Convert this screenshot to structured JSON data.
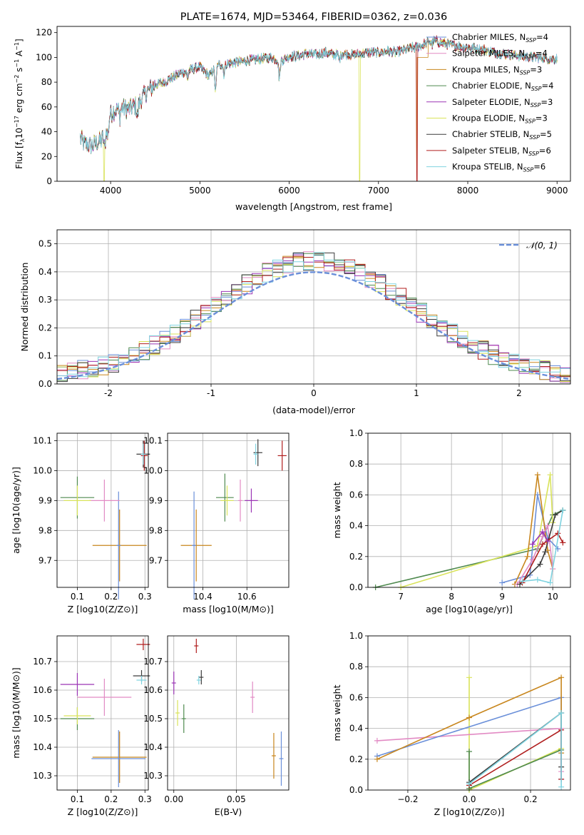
{
  "chart_data": [
    {
      "id": "spectrum",
      "type": "line",
      "title": "PLATE=1674, MJD=53464, FIBERID=0362, z=0.036",
      "xlabel": "wavelength [Angstrom, rest frame]",
      "ylabel_parts": [
        "Flux [f",
        "λ",
        "10",
        "−17",
        " erg cm",
        "−2",
        " s",
        "−1",
        " A",
        "−1",
        "]"
      ],
      "xlim": [
        3400,
        9150
      ],
      "ylim": [
        0,
        125
      ],
      "xticks": [
        4000,
        5000,
        6000,
        7000,
        8000,
        9000
      ],
      "yticks": [
        0,
        20,
        40,
        60,
        80,
        100,
        120
      ],
      "grid": false,
      "legend_position": "upper-right",
      "series": [
        {
          "name": "Chabrier MILES",
          "nssp": "4",
          "color": "#6a8fd9"
        },
        {
          "name": "Salpeter MILES",
          "nssp": "4",
          "color": "#e28ac4"
        },
        {
          "name": "Kroupa MILES",
          "nssp": "3",
          "color": "#c8861d"
        },
        {
          "name": "Chabrier ELODIE",
          "nssp": "4",
          "color": "#4f8a4f"
        },
        {
          "name": "Salpeter ELODIE",
          "nssp": "3",
          "color": "#9b35b5"
        },
        {
          "name": "Kroupa ELODIE",
          "nssp": "3",
          "color": "#d9e35a"
        },
        {
          "name": "Chabrier STELIB",
          "nssp": "5",
          "color": "#3c3c3c"
        },
        {
          "name": "Salpeter STELIB",
          "nssp": "6",
          "color": "#b01e1e"
        },
        {
          "name": "Kroupa STELIB",
          "nssp": "6",
          "color": "#7fd3e0"
        }
      ],
      "continuum_x": [
        3660,
        3700,
        3800,
        3900,
        4000,
        4100,
        4200,
        4300,
        4400,
        4500,
        4600,
        4700,
        4800,
        4900,
        5000,
        5100,
        5200,
        5300,
        5400,
        5500,
        5600,
        5700,
        5800,
        5900,
        6000,
        6100,
        6200,
        6300,
        6400,
        6500,
        6600,
        6700,
        6800,
        6900,
        7000,
        7100,
        7200,
        7300,
        7400,
        7500,
        7600,
        7700,
        7800,
        7900,
        8000,
        8100,
        8200,
        8300,
        8400,
        8500,
        8600,
        8700,
        8800,
        8900,
        9000
      ],
      "continuum_y": [
        35,
        30,
        29,
        33,
        55,
        60,
        58,
        62,
        72,
        78,
        80,
        84,
        88,
        90,
        92,
        85,
        94,
        95,
        96,
        97,
        98,
        99,
        100,
        97,
        101,
        101,
        103,
        102,
        104,
        102,
        103,
        102,
        103,
        104,
        104,
        105,
        104,
        106,
        108,
        110,
        114,
        112,
        110,
        109,
        108,
        107,
        106,
        104,
        103,
        102,
        101,
        100,
        100,
        99,
        99
      ],
      "dips": [
        {
          "series": 5,
          "x": 3925,
          "y": 0
        },
        {
          "series": 5,
          "x": 6790,
          "y": 0
        },
        {
          "series": 2,
          "x": 7430,
          "y": 0
        }
      ]
    },
    {
      "id": "residuals",
      "type": "histogram",
      "xlabel": "(data-model)/error",
      "ylabel": "Normed distribution",
      "xlim": [
        -2.5,
        2.5
      ],
      "ylim": [
        0,
        0.55
      ],
      "xticks": [
        -2,
        -1,
        0,
        1,
        2
      ],
      "yticks": [
        0.0,
        0.1,
        0.2,
        0.3,
        0.4,
        0.5
      ],
      "grid": true,
      "legend_position": "upper-right",
      "gaussian_label": "𝒩(0, 1)",
      "gaussian_color": "#6a8fd9",
      "bin_width": 0.1,
      "bin_start": -2.5
    },
    {
      "id": "age_vs_Z",
      "type": "scatter",
      "xlabel": "Z [log10(Z/Z⊙)]",
      "ylabel": "age  [log10(age/yr)]",
      "xlim": [
        0.04,
        0.31
      ],
      "ylim": [
        9.61,
        10.125
      ],
      "xticks": [
        "0.1",
        "0.2",
        "0.3"
      ],
      "yticks": [
        "9.7",
        "9.8",
        "9.9",
        "10.0",
        "10.1"
      ],
      "grid": true,
      "points": [
        {
          "color": "#c8861d",
          "x": 0.225,
          "y": 9.75,
          "xerr": 0.08,
          "yerr": 0.12
        },
        {
          "color": "#6a8fd9",
          "x": 0.222,
          "y": 9.75,
          "xerr": 0.0,
          "yerr": 0.18
        },
        {
          "color": "#e28ac4",
          "x": 0.18,
          "y": 9.9,
          "xerr": 0.045,
          "yerr": 0.07
        },
        {
          "color": "#4f8a4f",
          "x": 0.1,
          "y": 9.91,
          "xerr": 0.05,
          "yerr": 0.07
        },
        {
          "color": "#d9e35a",
          "x": 0.1,
          "y": 9.9,
          "xerr": 0.04,
          "yerr": 0.05
        },
        {
          "color": "#3c3c3c",
          "x": 0.295,
          "y": 10.055,
          "xerr": 0.02,
          "yerr": 0.045
        },
        {
          "color": "#b01e1e",
          "x": 0.298,
          "y": 10.05,
          "xerr": 0.01,
          "yerr": 0.05
        },
        {
          "color": "#7fd3e0",
          "x": 0.295,
          "y": 10.055,
          "xerr": 0.0,
          "yerr": 0.035
        }
      ]
    },
    {
      "id": "age_vs_mass",
      "type": "scatter",
      "xlabel": "mass [log10(M/M⊙)]",
      "ylabel": "",
      "xlim": [
        10.24,
        10.79
      ],
      "ylim": [
        9.61,
        10.125
      ],
      "xticks": [
        "10.4",
        "10.6"
      ],
      "yticks": [
        "9.7",
        "9.8",
        "9.9",
        "10.0",
        "10.1"
      ],
      "grid": true,
      "points": [
        {
          "color": "#c8861d",
          "x": 10.37,
          "y": 9.75,
          "xerr": 0.07,
          "yerr": 0.12
        },
        {
          "color": "#6a8fd9",
          "x": 10.36,
          "y": 9.75,
          "xerr": 0.0,
          "yerr": 0.18
        },
        {
          "color": "#4f8a4f",
          "x": 10.5,
          "y": 9.91,
          "xerr": 0.04,
          "yerr": 0.08
        },
        {
          "color": "#d9e35a",
          "x": 10.51,
          "y": 9.9,
          "xerr": 0.03,
          "yerr": 0.05
        },
        {
          "color": "#e28ac4",
          "x": 10.57,
          "y": 9.9,
          "xerr": 0.0,
          "yerr": 0.07
        },
        {
          "color": "#9b35b5",
          "x": 10.62,
          "y": 9.9,
          "xerr": 0.03,
          "yerr": 0.04
        },
        {
          "color": "#3c3c3c",
          "x": 10.65,
          "y": 10.06,
          "xerr": 0.02,
          "yerr": 0.045
        },
        {
          "color": "#7fd3e0",
          "x": 10.64,
          "y": 10.055,
          "xerr": 0.0,
          "yerr": 0.035
        },
        {
          "color": "#b01e1e",
          "x": 10.76,
          "y": 10.05,
          "xerr": 0.02,
          "yerr": 0.05
        }
      ]
    },
    {
      "id": "massweight_vs_age",
      "type": "line",
      "xlabel": "age  [log10(age/yr)]",
      "ylabel": "mass weight",
      "xlim": [
        6.35,
        10.35
      ],
      "ylim": [
        0,
        1
      ],
      "xticks": [
        "7",
        "8",
        "9",
        "10"
      ],
      "yticks": [
        "0.0",
        "0.2",
        "0.4",
        "0.6",
        "0.8",
        "1.0"
      ],
      "grid": true,
      "series": [
        {
          "color": "#4f8a4f",
          "pts": [
            [
              6.5,
              0.0
            ],
            [
              9.7,
              0.25
            ],
            [
              10.0,
              0.47
            ],
            [
              10.2,
              0.5
            ]
          ]
        },
        {
          "color": "#d9e35a",
          "pts": [
            [
              7.0,
              0.0
            ],
            [
              9.7,
              0.27
            ],
            [
              9.95,
              0.73
            ],
            [
              10.0,
              0.42
            ]
          ]
        },
        {
          "color": "#6a8fd9",
          "pts": [
            [
              9.0,
              0.03
            ],
            [
              9.55,
              0.08
            ],
            [
              9.7,
              0.6
            ],
            [
              9.9,
              0.32
            ],
            [
              10.1,
              0.25
            ]
          ]
        },
        {
          "color": "#c8861d",
          "pts": [
            [
              9.25,
              0.02
            ],
            [
              9.5,
              0.2
            ],
            [
              9.7,
              0.73
            ],
            [
              9.9,
              0.24
            ],
            [
              10.0,
              0.12
            ]
          ]
        },
        {
          "color": "#e28ac4",
          "pts": [
            [
              9.3,
              0.02
            ],
            [
              9.6,
              0.18
            ],
            [
              9.8,
              0.33
            ],
            [
              9.9,
              0.4
            ],
            [
              10.0,
              0.12
            ]
          ]
        },
        {
          "color": "#3c3c3c",
          "pts": [
            [
              9.35,
              0.02
            ],
            [
              9.75,
              0.15
            ],
            [
              9.85,
              0.23
            ],
            [
              10.05,
              0.47
            ],
            [
              10.2,
              0.5
            ]
          ]
        },
        {
          "color": "#b01e1e",
          "pts": [
            [
              9.4,
              0.03
            ],
            [
              9.8,
              0.28
            ],
            [
              10.1,
              0.35
            ],
            [
              10.2,
              0.29
            ]
          ]
        },
        {
          "color": "#7fd3e0",
          "pts": [
            [
              9.4,
              0.04
            ],
            [
              9.7,
              0.05
            ],
            [
              9.95,
              0.03
            ],
            [
              10.2,
              0.5
            ]
          ]
        },
        {
          "color": "#9b35b5",
          "pts": [
            [
              9.6,
              0.28
            ],
            [
              9.8,
              0.36
            ],
            [
              9.9,
              0.3
            ]
          ]
        }
      ]
    },
    {
      "id": "mass_vs_Z",
      "type": "scatter",
      "xlabel": "Z [log10(Z/Z⊙)]",
      "ylabel": "mass [log10(M/M⊙)]",
      "xlim": [
        0.04,
        0.31
      ],
      "ylim": [
        10.25,
        10.79
      ],
      "xticks": [
        "0.1",
        "0.2",
        "0.3"
      ],
      "yticks": [
        "10.3",
        "10.4",
        "10.5",
        "10.6",
        "10.7"
      ],
      "grid": true,
      "points": [
        {
          "color": "#9b35b5",
          "x": 0.1,
          "y": 10.62,
          "xerr": 0.05,
          "yerr": 0.04
        },
        {
          "color": "#e28ac4",
          "x": 0.18,
          "y": 10.575,
          "xerr": 0.08,
          "yerr": 0.065
        },
        {
          "color": "#4f8a4f",
          "x": 0.1,
          "y": 10.5,
          "xerr": 0.05,
          "yerr": 0.04
        },
        {
          "color": "#d9e35a",
          "x": 0.1,
          "y": 10.51,
          "xerr": 0.04,
          "yerr": 0.03
        },
        {
          "color": "#c8861d",
          "x": 0.225,
          "y": 10.365,
          "xerr": 0.08,
          "yerr": 0.09
        },
        {
          "color": "#6a8fd9",
          "x": 0.222,
          "y": 10.36,
          "xerr": 0.08,
          "yerr": 0.1
        },
        {
          "color": "#3c3c3c",
          "x": 0.29,
          "y": 10.65,
          "xerr": 0.025,
          "yerr": 0.02
        },
        {
          "color": "#7fd3e0",
          "x": 0.29,
          "y": 10.635,
          "xerr": 0.015,
          "yerr": 0.015
        },
        {
          "color": "#b01e1e",
          "x": 0.295,
          "y": 10.76,
          "xerr": 0.02,
          "yerr": 0.02
        }
      ]
    },
    {
      "id": "mass_vs_EBV",
      "type": "scatter",
      "xlabel": "E(B-V)",
      "ylabel": "",
      "xlim": [
        -0.005,
        0.092
      ],
      "ylim": [
        10.25,
        10.79
      ],
      "xticks": [
        "0.00",
        "0.05"
      ],
      "yticks": [
        "10.3",
        "10.4",
        "10.5",
        "10.6",
        "10.7"
      ],
      "grid": true,
      "points": [
        {
          "color": "#9b35b5",
          "x": 0.0,
          "y": 10.625,
          "xerr": 0.0,
          "yerr": 0.04
        },
        {
          "color": "#d9e35a",
          "x": 0.003,
          "y": 10.52,
          "xerr": 0.0,
          "yerr": 0.045
        },
        {
          "color": "#4f8a4f",
          "x": 0.008,
          "y": 10.5,
          "xerr": 0.0,
          "yerr": 0.05
        },
        {
          "color": "#b01e1e",
          "x": 0.018,
          "y": 10.755,
          "xerr": 0.0,
          "yerr": 0.025
        },
        {
          "color": "#7fd3e0",
          "x": 0.02,
          "y": 10.635,
          "xerr": 0.0,
          "yerr": 0.015
        },
        {
          "color": "#3c3c3c",
          "x": 0.022,
          "y": 10.645,
          "xerr": 0.0,
          "yerr": 0.025
        },
        {
          "color": "#e28ac4",
          "x": 0.063,
          "y": 10.575,
          "xerr": 0.0,
          "yerr": 0.055
        },
        {
          "color": "#c8861d",
          "x": 0.08,
          "y": 10.37,
          "xerr": 0.0,
          "yerr": 0.08
        },
        {
          "color": "#6a8fd9",
          "x": 0.086,
          "y": 10.36,
          "xerr": 0.0,
          "yerr": 0.095
        }
      ]
    },
    {
      "id": "massweight_vs_Z",
      "type": "line",
      "xlabel": "Z [log10(Z/Z⊙)]",
      "ylabel": "mass weight",
      "xlim": [
        -0.33,
        0.33
      ],
      "ylim": [
        0,
        1
      ],
      "xticks": [
        "−0.2",
        "0.0",
        "0.2"
      ],
      "yticks": [
        "0.0",
        "0.2",
        "0.4",
        "0.6",
        "0.8",
        "1.0"
      ],
      "grid": true,
      "series": [
        {
          "color": "#d9e35a",
          "pts": [
            [
              0.0,
              0.73
            ],
            [
              0.0,
              0.0
            ],
            [
              0.3,
              0.27
            ]
          ]
        },
        {
          "color": "#4f8a4f",
          "pts": [
            [
              0.0,
              0.25
            ],
            [
              0.0,
              0.01
            ],
            [
              0.3,
              0.26
            ]
          ]
        },
        {
          "color": "#e28ac4",
          "pts": [
            [
              -0.3,
              0.32
            ],
            [
              0.3,
              0.4
            ],
            [
              0.3,
              0.12
            ]
          ]
        },
        {
          "color": "#6a8fd9",
          "pts": [
            [
              -0.3,
              0.22
            ],
            [
              0.3,
              0.6
            ],
            [
              0.3,
              0.07
            ]
          ]
        },
        {
          "color": "#c8861d",
          "pts": [
            [
              -0.3,
              0.2
            ],
            [
              0.0,
              0.47
            ],
            [
              0.3,
              0.73
            ],
            [
              0.3,
              0.24
            ]
          ]
        },
        {
          "color": "#3c3c3c",
          "pts": [
            [
              0.0,
              0.05
            ],
            [
              0.3,
              0.5
            ],
            [
              0.3,
              0.15
            ]
          ]
        },
        {
          "color": "#b01e1e",
          "pts": [
            [
              0.0,
              0.03
            ],
            [
              0.3,
              0.39
            ],
            [
              0.3,
              0.07
            ]
          ]
        },
        {
          "color": "#7fd3e0",
          "pts": [
            [
              0.0,
              0.04
            ],
            [
              0.3,
              0.5
            ],
            [
              0.3,
              0.02
            ]
          ]
        }
      ]
    }
  ]
}
